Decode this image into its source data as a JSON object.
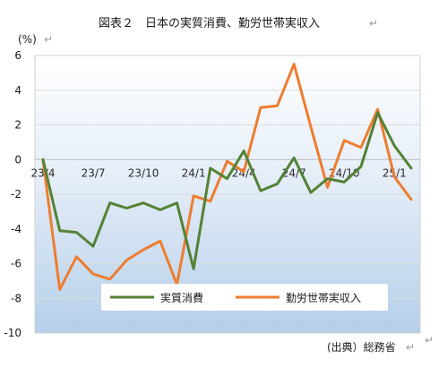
{
  "title": "図表２　日本の実質消費、勤労世帯実収入",
  "return_mark": "↵",
  "source": "(出典）総務省",
  "chart_data": {
    "type": "line",
    "title": "図表２　日本の実質消費、勤労世帯実収入",
    "ylabel": "(%)",
    "xlabel": "",
    "ylim": [
      -10,
      6
    ],
    "yticks": [
      6,
      4,
      2,
      0,
      -2,
      -4,
      -6,
      -8,
      -10
    ],
    "x": [
      "23/4",
      "23/5",
      "23/6",
      "23/7",
      "23/8",
      "23/9",
      "23/10",
      "23/11",
      "23/12",
      "24/1",
      "24/2",
      "24/3",
      "24/4",
      "24/5",
      "24/6",
      "24/7",
      "24/8",
      "24/9",
      "24/10",
      "24/11",
      "24/12",
      "25/1",
      "25/2"
    ],
    "xtick_labels": [
      "23/4",
      "23/7",
      "23/10",
      "24/1",
      "24/4",
      "24/7",
      "24/10",
      "25/1"
    ],
    "grid": true,
    "legend_position": "bottom",
    "series": [
      {
        "name": "実質消費",
        "color": "#548235",
        "values": [
          0.0,
          -4.1,
          -4.2,
          -5.0,
          -2.5,
          -2.8,
          -2.5,
          -2.9,
          -2.5,
          -6.3,
          -0.5,
          -1.1,
          0.5,
          -1.8,
          -1.4,
          0.1,
          -1.9,
          -1.1,
          -1.3,
          -0.4,
          2.7,
          0.8,
          -0.5
        ]
      },
      {
        "name": "勤労世帯実収入",
        "color": "#ed7d31",
        "values": [
          0.0,
          -7.5,
          -5.6,
          -6.6,
          -6.9,
          -5.8,
          -5.2,
          -4.7,
          -7.2,
          -2.1,
          -2.4,
          -0.1,
          -0.7,
          3.0,
          3.1,
          5.5,
          1.9,
          -1.6,
          1.1,
          0.7,
          2.9,
          -1.0,
          -2.3
        ]
      }
    ]
  }
}
